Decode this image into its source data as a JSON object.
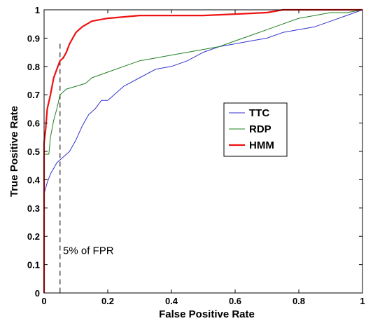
{
  "chart_data": {
    "type": "line",
    "xlabel": "False Positive Rate",
    "ylabel": "True Positive Rate",
    "xlim": [
      0,
      1
    ],
    "ylim": [
      0,
      1
    ],
    "x_ticks": [
      "0",
      "0.2",
      "0.4",
      "0.6",
      "0.8",
      "1"
    ],
    "y_ticks": [
      "0",
      "0.1",
      "0.2",
      "0.3",
      "0.4",
      "0.5",
      "0.6",
      "0.7",
      "0.8",
      "0.9",
      "1"
    ],
    "grid": false,
    "legend_position": "center-right",
    "series": [
      {
        "name": "TTC",
        "color": "#3333cc",
        "x": [
          0,
          0,
          0.01,
          0.02,
          0.03,
          0.04,
          0.05,
          0.06,
          0.08,
          0.1,
          0.12,
          0.14,
          0.16,
          0.18,
          0.2,
          0.25,
          0.3,
          0.35,
          0.4,
          0.45,
          0.5,
          0.55,
          0.6,
          0.65,
          0.7,
          0.75,
          0.8,
          0.85,
          0.9,
          0.95,
          1
        ],
        "y": [
          0,
          0.35,
          0.39,
          0.42,
          0.44,
          0.46,
          0.47,
          0.48,
          0.5,
          0.54,
          0.59,
          0.63,
          0.65,
          0.68,
          0.68,
          0.73,
          0.76,
          0.79,
          0.8,
          0.82,
          0.85,
          0.87,
          0.88,
          0.89,
          0.9,
          0.92,
          0.93,
          0.94,
          0.96,
          0.98,
          1
        ]
      },
      {
        "name": "RDP",
        "color": "#208020",
        "x": [
          0,
          0,
          0.005,
          0.01,
          0.015,
          0.02,
          0.03,
          0.04,
          0.05,
          0.07,
          0.1,
          0.13,
          0.15,
          0.2,
          0.25,
          0.3,
          0.35,
          0.4,
          0.45,
          0.5,
          0.55,
          0.6,
          0.65,
          0.7,
          0.75,
          0.8,
          0.85,
          0.9,
          0.95,
          1
        ],
        "y": [
          0,
          0.49,
          0.49,
          0.49,
          0.49,
          0.55,
          0.61,
          0.65,
          0.7,
          0.72,
          0.73,
          0.74,
          0.76,
          0.78,
          0.8,
          0.82,
          0.83,
          0.84,
          0.85,
          0.86,
          0.87,
          0.89,
          0.91,
          0.93,
          0.95,
          0.97,
          0.98,
          0.99,
          0.99,
          1
        ]
      },
      {
        "name": "HMM",
        "color": "#ee1111",
        "x": [
          0,
          0,
          0.005,
          0.01,
          0.02,
          0.03,
          0.04,
          0.05,
          0.06,
          0.07,
          0.08,
          0.1,
          0.12,
          0.15,
          0.2,
          0.25,
          0.3,
          0.4,
          0.5,
          0.6,
          0.7,
          0.75,
          0.8,
          0.9,
          1
        ],
        "y": [
          0,
          0.53,
          0.58,
          0.65,
          0.7,
          0.76,
          0.79,
          0.82,
          0.83,
          0.85,
          0.88,
          0.92,
          0.94,
          0.96,
          0.97,
          0.975,
          0.98,
          0.98,
          0.98,
          0.985,
          0.99,
          1,
          1,
          1,
          1
        ]
      }
    ],
    "annotations": [
      {
        "type": "vline",
        "x": 0.05,
        "y_top": 0.88,
        "style": "dashed",
        "color": "#333333"
      },
      {
        "type": "text",
        "text": "5% of FPR",
        "x": 0.055,
        "y": 0.15
      }
    ]
  }
}
